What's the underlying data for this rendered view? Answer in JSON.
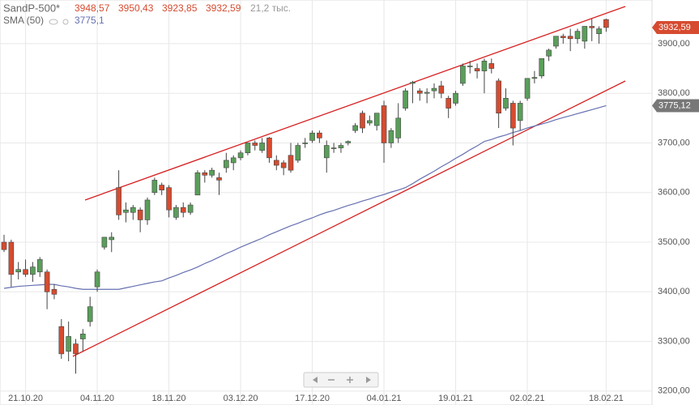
{
  "chart_data": {
    "type": "candlestick",
    "title": "SandP-500*",
    "ohlc_legend": {
      "open": {
        "value": 3948.57,
        "label": "3948,57"
      },
      "high": {
        "value": 3950.43,
        "label": "3950,43"
      },
      "low": {
        "value": 3923.85,
        "label": "3923,85"
      },
      "close": {
        "value": 3932.59,
        "label": "3932,59"
      },
      "volume": {
        "value": 21200,
        "label": "21,2 тыс."
      }
    },
    "x": [
      "16.10.20",
      "19.10.20",
      "20.10.20",
      "21.10.20",
      "22.10.20",
      "23.10.20",
      "26.10.20",
      "27.10.20",
      "28.10.20",
      "29.10.20",
      "30.10.20",
      "02.11.20",
      "03.11.20",
      "04.11.20",
      "05.11.20",
      "06.11.20",
      "09.11.20",
      "10.11.20",
      "11.11.20",
      "12.11.20",
      "13.11.20",
      "16.11.20",
      "17.11.20",
      "18.11.20",
      "19.11.20",
      "20.11.20",
      "23.11.20",
      "24.11.20",
      "25.11.20",
      "27.11.20",
      "30.11.20",
      "01.12.20",
      "02.12.20",
      "03.12.20",
      "04.12.20",
      "07.12.20",
      "08.12.20",
      "09.12.20",
      "10.12.20",
      "11.12.20",
      "14.12.20",
      "15.12.20",
      "16.12.20",
      "17.12.20",
      "18.12.20",
      "21.12.20",
      "22.12.20",
      "23.12.20",
      "24.12.20",
      "28.12.20",
      "29.12.20",
      "30.12.20",
      "31.12.20",
      "04.01.21",
      "05.01.21",
      "06.01.21",
      "07.01.21",
      "08.01.21",
      "11.01.21",
      "12.01.21",
      "13.01.21",
      "14.01.21",
      "15.01.21",
      "19.01.21",
      "20.01.21",
      "21.01.21",
      "22.01.21",
      "25.01.21",
      "26.01.21",
      "27.01.21",
      "28.01.21",
      "29.01.21",
      "01.02.21",
      "02.02.21",
      "03.02.21",
      "04.02.21",
      "05.02.21",
      "08.02.21",
      "09.02.21",
      "10.02.21",
      "11.02.21",
      "12.02.21",
      "16.02.21",
      "17.02.21",
      "18.02.21"
    ],
    "xticks": [
      "21.10.20",
      "04.11.20",
      "18.11.20",
      "03.12.20",
      "17.12.20",
      "04.01.21",
      "19.01.21",
      "02.02.21",
      "18.02.21"
    ],
    "up_color": "#5a9e5a",
    "down_color": "#d64b2f",
    "open": [
      3500,
      3500,
      3440,
      3445,
      3435,
      3440,
      3440,
      3405,
      3330,
      3280,
      3295,
      3305,
      3340,
      3410,
      3490,
      3505,
      3610,
      3560,
      3560,
      3565,
      3545,
      3600,
      3615,
      3610,
      3550,
      3570,
      3560,
      3595,
      3640,
      3635,
      3630,
      3650,
      3660,
      3670,
      3680,
      3700,
      3685,
      3710,
      3665,
      3660,
      3675,
      3665,
      3700,
      3705,
      3720,
      3670,
      3690,
      3690,
      3700,
      3725,
      3760,
      3740,
      3735,
      3775,
      3700,
      3710,
      3770,
      3820,
      3805,
      3800,
      3805,
      3815,
      3790,
      3780,
      3820,
      3855,
      3850,
      3845,
      3860,
      3825,
      3770,
      3780,
      3745,
      3790,
      3830,
      3835,
      3875,
      3895,
      3915,
      3915,
      3910,
      3905,
      3935,
      3920,
      3948.57
    ],
    "high": [
      3515,
      3505,
      3460,
      3465,
      3460,
      3470,
      3445,
      3415,
      3345,
      3340,
      3305,
      3325,
      3390,
      3445,
      3510,
      3520,
      3645,
      3580,
      3575,
      3570,
      3590,
      3630,
      3620,
      3615,
      3575,
      3580,
      3580,
      3645,
      3645,
      3650,
      3640,
      3680,
      3675,
      3685,
      3700,
      3705,
      3710,
      3712,
      3675,
      3665,
      3700,
      3700,
      3710,
      3725,
      3725,
      3705,
      3700,
      3700,
      3705,
      3740,
      3765,
      3755,
      3760,
      3785,
      3730,
      3780,
      3810,
      3825,
      3810,
      3810,
      3820,
      3825,
      3795,
      3805,
      3860,
      3865,
      3860,
      3870,
      3870,
      3830,
      3810,
      3785,
      3785,
      3830,
      3845,
      3870,
      3890,
      3915,
      3920,
      3930,
      3930,
      3935,
      3950,
      3935,
      3950.43
    ],
    "low": [
      3480,
      3410,
      3425,
      3430,
      3420,
      3430,
      3365,
      3385,
      3265,
      3260,
      3235,
      3280,
      3330,
      3400,
      3485,
      3480,
      3545,
      3540,
      3545,
      3520,
      3535,
      3595,
      3595,
      3550,
      3545,
      3550,
      3555,
      3595,
      3620,
      3630,
      3595,
      3640,
      3645,
      3665,
      3675,
      3685,
      3680,
      3660,
      3645,
      3635,
      3640,
      3660,
      3690,
      3700,
      3700,
      3640,
      3680,
      3680,
      3695,
      3720,
      3720,
      3735,
      3725,
      3660,
      3690,
      3700,
      3765,
      3780,
      3785,
      3780,
      3790,
      3790,
      3750,
      3775,
      3815,
      3840,
      3830,
      3800,
      3840,
      3730,
      3765,
      3695,
      3725,
      3785,
      3820,
      3830,
      3865,
      3890,
      3900,
      3885,
      3900,
      3890,
      3905,
      3900,
      3923.85
    ],
    "close": [
      3485,
      3435,
      3445,
      3435,
      3450,
      3465,
      3400,
      3395,
      3275,
      3310,
      3275,
      3315,
      3370,
      3440,
      3510,
      3510,
      3555,
      3565,
      3570,
      3545,
      3585,
      3625,
      3605,
      3565,
      3570,
      3560,
      3575,
      3640,
      3635,
      3645,
      3625,
      3665,
      3670,
      3680,
      3700,
      3695,
      3700,
      3670,
      3655,
      3650,
      3645,
      3695,
      3700,
      3720,
      3710,
      3695,
      3690,
      3695,
      3703,
      3735,
      3730,
      3745,
      3760,
      3700,
      3725,
      3750,
      3805,
      3822,
      3800,
      3802,
      3810,
      3800,
      3770,
      3800,
      3855,
      3855,
      3845,
      3865,
      3850,
      3760,
      3790,
      3730,
      3780,
      3830,
      3832,
      3870,
      3887,
      3915,
      3912,
      3910,
      3925,
      3935,
      3932,
      3930,
      3932.59
    ],
    "sma": {
      "name": "SMA (50)",
      "color": "#6670b0",
      "legend_value": {
        "value": 3775.1,
        "label": "3775,1"
      },
      "last_label": {
        "value": 3775.12,
        "label": "3775,12"
      },
      "values": [
        3407,
        3409,
        3411,
        3412,
        3413,
        3414,
        3415,
        3415,
        3412,
        3410,
        3407,
        3405,
        3405,
        3405,
        3405,
        3405,
        3405,
        3408,
        3411,
        3414,
        3417,
        3420,
        3422,
        3428,
        3433,
        3439,
        3444,
        3450,
        3457,
        3463,
        3470,
        3477,
        3483,
        3490,
        3496,
        3502,
        3508,
        3515,
        3521,
        3527,
        3533,
        3538,
        3544,
        3549,
        3555,
        3560,
        3564,
        3569,
        3574,
        3578,
        3583,
        3587,
        3592,
        3596,
        3601,
        3605,
        3610,
        3618,
        3627,
        3635,
        3643,
        3652,
        3660,
        3669,
        3677,
        3686,
        3694,
        3703,
        3707,
        3712,
        3716,
        3721,
        3725,
        3730,
        3734,
        3738,
        3742,
        3747,
        3751,
        3755,
        3759,
        3763,
        3767,
        3771,
        3775.12
      ]
    },
    "last_price_label": {
      "value": 3932.59,
      "label": "3932,59"
    },
    "ylim": [
      3172,
      3988
    ],
    "yticks": [
      {
        "value": 3200,
        "label": "3200,00"
      },
      {
        "value": 3300,
        "label": "3300,00"
      },
      {
        "value": 3400,
        "label": "3400,00"
      },
      {
        "value": 3500,
        "label": "3500,00"
      },
      {
        "value": 3600,
        "label": "3600,00"
      },
      {
        "value": 3700,
        "label": "3700,00"
      },
      {
        "value": 3800,
        "label": "3800,00"
      },
      {
        "value": 3900,
        "label": "3900,00"
      }
    ],
    "grid": true
  }
}
